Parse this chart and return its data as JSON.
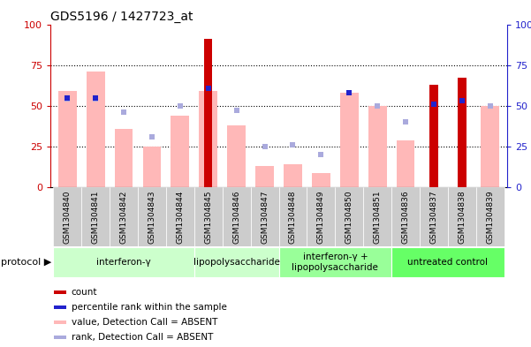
{
  "title": "GDS5196 / 1427723_at",
  "samples": [
    "GSM1304840",
    "GSM1304841",
    "GSM1304842",
    "GSM1304843",
    "GSM1304844",
    "GSM1304845",
    "GSM1304846",
    "GSM1304847",
    "GSM1304848",
    "GSM1304849",
    "GSM1304850",
    "GSM1304851",
    "GSM1304836",
    "GSM1304837",
    "GSM1304838",
    "GSM1304839"
  ],
  "count_values": [
    0,
    0,
    0,
    0,
    0,
    91,
    0,
    0,
    0,
    0,
    0,
    0,
    0,
    63,
    67,
    0
  ],
  "rank_values": [
    55,
    55,
    0,
    0,
    0,
    61,
    0,
    0,
    0,
    0,
    58,
    0,
    0,
    51,
    53,
    0
  ],
  "absent_value_bars": [
    59,
    71,
    36,
    25,
    44,
    59,
    38,
    13,
    14,
    9,
    58,
    50,
    29,
    0,
    0,
    50
  ],
  "absent_rank_bars": [
    54,
    54,
    46,
    31,
    50,
    0,
    47,
    25,
    26,
    20,
    0,
    50,
    40,
    0,
    0,
    50
  ],
  "protocol_spans": [
    {
      "start": 0,
      "end": 5,
      "color": "#ccffcc",
      "label": "interferon-γ"
    },
    {
      "start": 5,
      "end": 8,
      "color": "#ccffcc",
      "label": "lipopolysaccharide"
    },
    {
      "start": 8,
      "end": 12,
      "color": "#99ff99",
      "label": "interferon-γ +\nlipopolysaccharide"
    },
    {
      "start": 12,
      "end": 16,
      "color": "#66ff66",
      "label": "untreated control"
    }
  ],
  "ylim": [
    0,
    100
  ],
  "count_color": "#cc0000",
  "rank_color": "#2222cc",
  "absent_value_color": "#ffb8b8",
  "absent_rank_color": "#aaaadd",
  "bg_color": "#ffffff",
  "tick_bg_color": "#cccccc",
  "legend_items": [
    {
      "label": "count",
      "color": "#cc0000"
    },
    {
      "label": "percentile rank within the sample",
      "color": "#2222cc"
    },
    {
      "label": "value, Detection Call = ABSENT",
      "color": "#ffb8b8"
    },
    {
      "label": "rank, Detection Call = ABSENT",
      "color": "#aaaadd"
    }
  ]
}
